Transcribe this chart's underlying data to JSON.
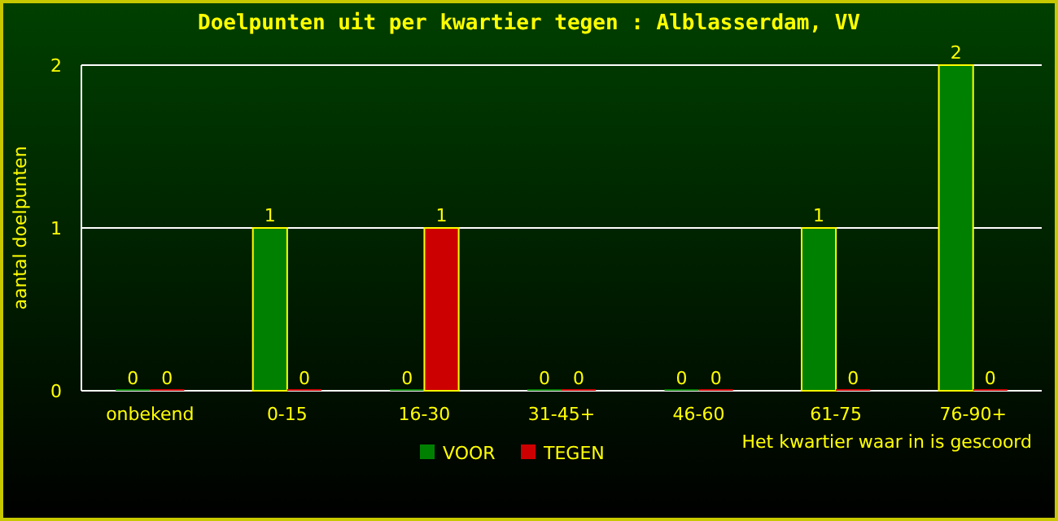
{
  "chart_data": {
    "type": "bar",
    "title": "Doelpunten uit per kwartier tegen : Alblasserdam, VV",
    "xlabel": "Het kwartier waar in is gescoord",
    "ylabel": "aantal doelpunten",
    "categories": [
      "onbekend",
      "0-15",
      "16-30",
      "31-45+",
      "46-60",
      "61-75",
      "76-90+"
    ],
    "series": [
      {
        "name": "VOOR",
        "color": "#008000",
        "values": [
          0,
          1,
          0,
          0,
          0,
          1,
          2
        ]
      },
      {
        "name": "TEGEN",
        "color": "#cc0000",
        "values": [
          0,
          0,
          1,
          0,
          0,
          0,
          0
        ]
      }
    ],
    "ylim": [
      0,
      2
    ],
    "yticks": [
      0,
      1,
      2
    ],
    "grid": "y",
    "legend": "bottom",
    "data_labels": true
  }
}
